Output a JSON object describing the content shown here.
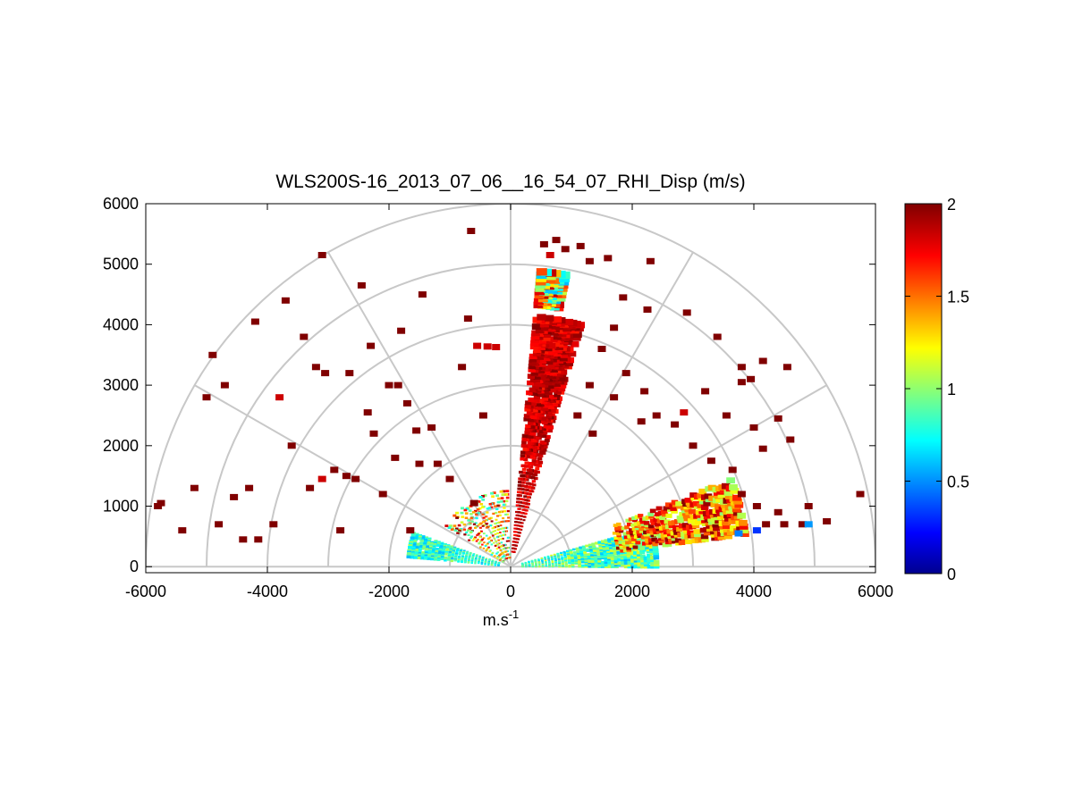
{
  "chart_data": {
    "type": "heatmap",
    "subtype": "polar-rhi-scan",
    "title": "WLS200S-16_2013_07_06__16_54_07_RHI_Disp (m/s)",
    "xlabel": "m.s",
    "xlabel_superscript": "-1",
    "ylabel": "",
    "xlim": [
      -6000,
      6000
    ],
    "ylim": [
      -100,
      6000
    ],
    "x_ticks": [
      -6000,
      -4000,
      -2000,
      0,
      2000,
      4000,
      6000
    ],
    "y_ticks": [
      0,
      1000,
      2000,
      3000,
      4000,
      5000,
      6000
    ],
    "x_tick_labels": [
      "-6000",
      "-4000",
      "-2000",
      "0",
      "2000",
      "4000",
      "6000"
    ],
    "y_tick_labels": [
      "0",
      "1000",
      "2000",
      "3000",
      "4000",
      "5000",
      "6000"
    ],
    "polar_range_rings": [
      1000,
      2000,
      3000,
      4000,
      5000,
      6000
    ],
    "polar_angle_spokes_deg": [
      30,
      60,
      90,
      120,
      150
    ],
    "grid": true,
    "colorbar": {
      "colormap": "jet",
      "min": 0,
      "max": 2,
      "ticks": [
        0,
        0.5,
        1,
        1.5,
        2
      ],
      "tick_labels": [
        "0",
        "0.5",
        "1",
        "1.5",
        "2"
      ],
      "placement": "right"
    },
    "colors": {
      "grid": "#c8c8c8",
      "axes": "#000000",
      "background": "#ffffff"
    },
    "sectors": [
      {
        "azimuth_deg": 79,
        "width_deg": 10,
        "range_min": 250,
        "range_max": 4200,
        "value_min": 1.7,
        "value_max": 2.0,
        "density": 0.75
      },
      {
        "azimuth_deg": 82,
        "width_deg": 5,
        "range_min": 4350,
        "range_max": 4900,
        "value_min": 0.6,
        "value_max": 1.9,
        "density": 0.9
      },
      {
        "azimuth_deg": 8,
        "width_deg": 16,
        "range_min": 200,
        "range_max": 2400,
        "value_min": 0.6,
        "value_max": 1.2,
        "density": 0.85
      },
      {
        "azimuth_deg": 15,
        "width_deg": 14,
        "range_min": 1800,
        "range_max": 3900,
        "value_min": 1.0,
        "value_max": 2.0,
        "density": 0.55
      },
      {
        "azimuth_deg": 168,
        "width_deg": 14,
        "range_min": 200,
        "range_max": 1700,
        "value_min": 0.6,
        "value_max": 1.1,
        "density": 0.85
      },
      {
        "azimuth_deg": 120,
        "width_deg": 55,
        "range_min": 150,
        "range_max": 1300,
        "value_min": 0.7,
        "value_max": 2.0,
        "density": 0.25
      }
    ],
    "scattered_cells": [
      [
        -5750,
        1050,
        2.0
      ],
      [
        -5400,
        600,
        2.0
      ],
      [
        -5200,
        1300,
        2.0
      ],
      [
        -5000,
        2800,
        2.0
      ],
      [
        -4900,
        3500,
        2.0
      ],
      [
        -4800,
        700,
        2.0
      ],
      [
        -4700,
        3000,
        2.0
      ],
      [
        -4550,
        1150,
        2.0
      ],
      [
        -4400,
        450,
        2.0
      ],
      [
        -4300,
        1300,
        2.0
      ],
      [
        -4200,
        4050,
        2.0
      ],
      [
        -4150,
        450,
        2.0
      ],
      [
        -3900,
        700,
        2.0
      ],
      [
        -3800,
        2800,
        1.85
      ],
      [
        -3700,
        4400,
        2.0
      ],
      [
        -3600,
        2000,
        2.0
      ],
      [
        -3400,
        3800,
        2.0
      ],
      [
        -3300,
        1300,
        2.0
      ],
      [
        -3200,
        3300,
        2.0
      ],
      [
        -3050,
        3200,
        2.0
      ],
      [
        -3100,
        5150,
        2.0
      ],
      [
        -2900,
        1600,
        2.0
      ],
      [
        -2800,
        600,
        2.0
      ],
      [
        -2650,
        3200,
        2.0
      ],
      [
        -2550,
        1450,
        2.0
      ],
      [
        -2450,
        4650,
        2.0
      ],
      [
        -2350,
        2550,
        2.0
      ],
      [
        -2300,
        3650,
        2.0
      ],
      [
        -2250,
        2200,
        2.0
      ],
      [
        -2100,
        1200,
        2.0
      ],
      [
        -2000,
        3000,
        2.0
      ],
      [
        -1900,
        1800,
        2.0
      ],
      [
        -1800,
        3900,
        2.0
      ],
      [
        -1700,
        2700,
        2.0
      ],
      [
        -1650,
        600,
        2.0
      ],
      [
        -1550,
        2250,
        2.0
      ],
      [
        -1500,
        1700,
        2.0
      ],
      [
        -1450,
        4500,
        2.0
      ],
      [
        -1300,
        2300,
        2.0
      ],
      [
        -1200,
        1700,
        2.0
      ],
      [
        -1000,
        1450,
        2.0
      ],
      [
        -800,
        3300,
        2.0
      ],
      [
        -700,
        4100,
        2.0
      ],
      [
        -450,
        2500,
        2.0
      ],
      [
        -650,
        5550,
        2.0
      ],
      [
        -3100,
        1450,
        1.85
      ],
      [
        -2700,
        1500,
        2.0
      ],
      [
        -1850,
        3000,
        2.0
      ],
      [
        -5800,
        1000,
        2.0
      ],
      [
        -600,
        1050,
        2.0
      ],
      [
        550,
        5330,
        2.0
      ],
      [
        750,
        5400,
        2.0
      ],
      [
        900,
        5250,
        2.0
      ],
      [
        1150,
        5300,
        2.0
      ],
      [
        650,
        5150,
        1.85
      ],
      [
        1300,
        5050,
        2.0
      ],
      [
        1600,
        5100,
        2.0
      ],
      [
        2300,
        5050,
        2.0
      ],
      [
        1850,
        4450,
        2.0
      ],
      [
        2250,
        4250,
        2.0
      ],
      [
        2900,
        4200,
        2.0
      ],
      [
        3400,
        3800,
        2.0
      ],
      [
        3800,
        3300,
        2.0
      ],
      [
        3950,
        3100,
        2.0
      ],
      [
        4150,
        3400,
        2.0
      ],
      [
        4550,
        3300,
        2.0
      ],
      [
        3800,
        3050,
        2.0
      ],
      [
        3200,
        2900,
        2.0
      ],
      [
        3550,
        2500,
        2.0
      ],
      [
        4000,
        2300,
        2.0
      ],
      [
        4150,
        1950,
        2.0
      ],
      [
        4400,
        2450,
        2.0
      ],
      [
        4600,
        2100,
        2.0
      ],
      [
        2850,
        2550,
        1.85
      ],
      [
        3000,
        2000,
        2.0
      ],
      [
        3300,
        1750,
        2.0
      ],
      [
        3650,
        1600,
        2.0
      ],
      [
        3800,
        1200,
        2.0
      ],
      [
        4050,
        1000,
        2.0
      ],
      [
        4200,
        700,
        2.0
      ],
      [
        4400,
        900,
        2.0
      ],
      [
        4500,
        700,
        2.0
      ],
      [
        4900,
        1000,
        2.0
      ],
      [
        5200,
        750,
        2.0
      ],
      [
        4800,
        700,
        2.0
      ],
      [
        5750,
        1200,
        2.0
      ],
      [
        4050,
        600,
        0.35
      ],
      [
        3750,
        550,
        0.5
      ],
      [
        4900,
        700,
        0.55
      ],
      [
        2150,
        2400,
        2.0
      ],
      [
        1300,
        3000,
        2.0
      ],
      [
        1500,
        3600,
        2.0
      ],
      [
        1700,
        3950,
        2.0
      ],
      [
        1900,
        3200,
        2.0
      ],
      [
        2200,
        2900,
        2.0
      ],
      [
        2400,
        2500,
        2.0
      ],
      [
        2700,
        2350,
        2.0
      ],
      [
        1700,
        2800,
        2.0
      ],
      [
        1350,
        2200,
        2.0
      ],
      [
        1100,
        2500,
        2.0
      ],
      [
        -550,
        3650,
        1.85
      ],
      [
        -380,
        3640,
        1.85
      ],
      [
        -240,
        3630,
        1.85
      ]
    ]
  }
}
